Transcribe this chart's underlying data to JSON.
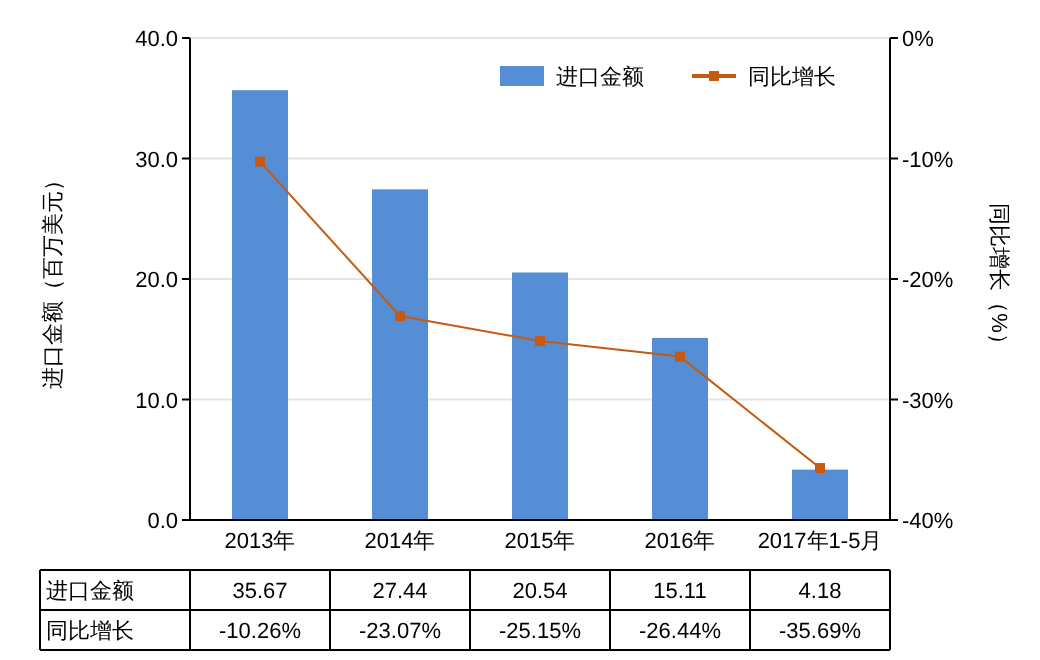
{
  "chart_data": {
    "type": "bar",
    "categories": [
      "2013年",
      "2014年",
      "2015年",
      "2016年",
      "2017年1-5月"
    ],
    "ylabel": "进口金额（百万美元）",
    "y2label": "同比增长（%）",
    "ylim": [
      0,
      40
    ],
    "yticks": [
      {
        "value": 0,
        "label": "0.0"
      },
      {
        "value": 10,
        "label": "10.0"
      },
      {
        "value": 20,
        "label": "20.0"
      },
      {
        "value": 30,
        "label": "30.0"
      },
      {
        "value": 40,
        "label": "40.0"
      }
    ],
    "y2lim": [
      -40,
      0
    ],
    "y2ticks": [
      {
        "value": -40,
        "label": "-40%"
      },
      {
        "value": -30,
        "label": "-30%"
      },
      {
        "value": -20,
        "label": "-20%"
      },
      {
        "value": -10,
        "label": "-10%"
      },
      {
        "value": 0,
        "label": "0%"
      }
    ],
    "grid": "y",
    "legend": "top right",
    "data_labels": true,
    "series": [
      {
        "name": "进口金额",
        "color": "#558ed5",
        "values": [
          35.67,
          27.44,
          20.54,
          15.11,
          4.18
        ]
      },
      {
        "name": "同比增长",
        "type": "line",
        "axis": "y2",
        "color": "#c55a11",
        "marker": "square",
        "values": [
          -10.26,
          -23.07,
          -25.15,
          -26.44,
          -35.69
        ],
        "value_labels": [
          "-10.26%",
          "-23.07%",
          "-25.15%",
          "-26.44%",
          "-35.69%"
        ]
      }
    ]
  }
}
